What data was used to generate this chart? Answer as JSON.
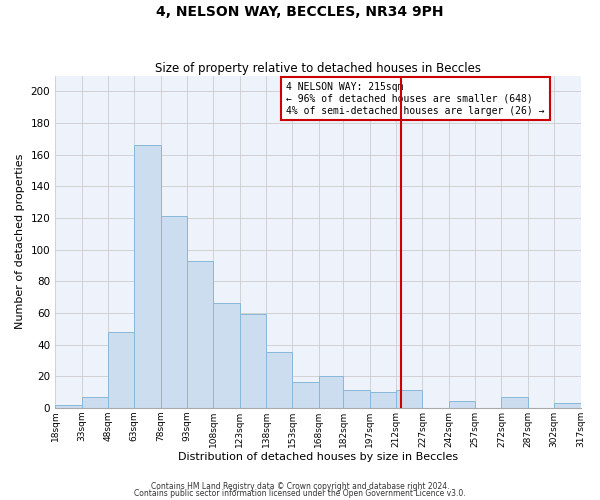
{
  "title": "4, NELSON WAY, BECCLES, NR34 9PH",
  "subtitle": "Size of property relative to detached houses in Beccles",
  "xlabel": "Distribution of detached houses by size in Beccles",
  "ylabel": "Number of detached properties",
  "footnote1": "Contains HM Land Registry data © Crown copyright and database right 2024.",
  "footnote2": "Contains public sector information licensed under the Open Government Licence v3.0.",
  "bar_edges": [
    18,
    33,
    48,
    63,
    78,
    93,
    108,
    123,
    138,
    153,
    168,
    182,
    197,
    212,
    227,
    242,
    257,
    272,
    287,
    302,
    317
  ],
  "bar_heights": [
    2,
    7,
    48,
    166,
    121,
    93,
    66,
    59,
    35,
    16,
    20,
    11,
    10,
    11,
    0,
    4,
    0,
    7,
    0,
    3
  ],
  "bar_color": "#ccddf0",
  "bar_edgecolor": "#88b8d8",
  "grid_color": "#cccccc",
  "bg_color": "#eef2fa",
  "property_line_x": 215,
  "property_line_color": "#cc0000",
  "annotation_title": "4 NELSON WAY: 215sqm",
  "annotation_left": "← 96% of detached houses are smaller (648)",
  "annotation_right": "4% of semi-detached houses are larger (26) →",
  "annotation_box_edgecolor": "#cc0000",
  "ylim": [
    0,
    210
  ],
  "yticks": [
    0,
    20,
    40,
    60,
    80,
    100,
    120,
    140,
    160,
    180,
    200
  ],
  "tick_labels": [
    "18sqm",
    "33sqm",
    "48sqm",
    "63sqm",
    "78sqm",
    "93sqm",
    "108sqm",
    "123sqm",
    "138sqm",
    "153sqm",
    "168sqm",
    "182sqm",
    "197sqm",
    "212sqm",
    "227sqm",
    "242sqm",
    "257sqm",
    "272sqm",
    "287sqm",
    "302sqm",
    "317sqm"
  ]
}
